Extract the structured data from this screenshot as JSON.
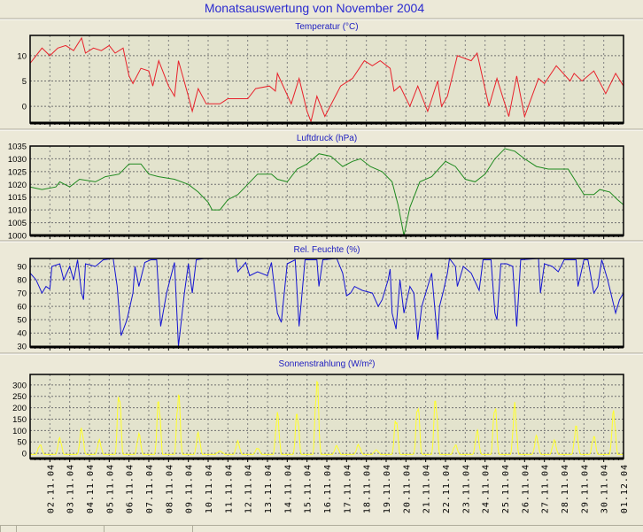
{
  "title": "Monatsauswertung von November 2004",
  "colors": {
    "background": "#ece9d8",
    "plot_bg": "#e3e3cd",
    "temperature": "#e8202a",
    "pressure": "#1f8a1f",
    "humidity": "#1414d2",
    "solar": "#ffff2a",
    "title": "#2a2ad0"
  },
  "chart_data": [
    {
      "type": "line",
      "title": "Temperatur (°C)",
      "ylim": [
        -3.3,
        14
      ],
      "yticks": [
        0,
        5,
        10
      ],
      "x_unit": "days since 01.11.04",
      "points": [
        [
          0,
          8.5
        ],
        [
          0.3,
          10
        ],
        [
          0.6,
          11.5
        ],
        [
          1,
          10
        ],
        [
          1.4,
          11.5
        ],
        [
          1.8,
          12
        ],
        [
          2.2,
          11
        ],
        [
          2.6,
          13.5
        ],
        [
          2.8,
          10.5
        ],
        [
          3.2,
          11.5
        ],
        [
          3.6,
          11
        ],
        [
          4,
          12
        ],
        [
          4.3,
          10.5
        ],
        [
          4.7,
          11.5
        ],
        [
          5,
          6
        ],
        [
          5.2,
          4.5
        ],
        [
          5.6,
          7.5
        ],
        [
          6,
          7
        ],
        [
          6.2,
          4
        ],
        [
          6.5,
          9
        ],
        [
          7,
          4
        ],
        [
          7.3,
          2
        ],
        [
          7.5,
          9
        ],
        [
          8,
          2
        ],
        [
          8.2,
          -1
        ],
        [
          8.5,
          3.5
        ],
        [
          8.9,
          0.5
        ],
        [
          9.6,
          0.5
        ],
        [
          10,
          1.5
        ],
        [
          11,
          1.5
        ],
        [
          11.4,
          3.5
        ],
        [
          12.1,
          4
        ],
        [
          12.4,
          3
        ],
        [
          12.5,
          6.5
        ],
        [
          13.2,
          0.5
        ],
        [
          13.6,
          5.5
        ],
        [
          14,
          -1
        ],
        [
          14.2,
          -3
        ],
        [
          14.5,
          2
        ],
        [
          14.9,
          -2
        ],
        [
          15.7,
          4
        ],
        [
          16.3,
          5.5
        ],
        [
          16.9,
          9
        ],
        [
          17.3,
          8
        ],
        [
          17.7,
          9
        ],
        [
          18.2,
          7.5
        ],
        [
          18.4,
          3
        ],
        [
          18.7,
          4
        ],
        [
          19.2,
          0
        ],
        [
          19.6,
          4
        ],
        [
          20.1,
          -1
        ],
        [
          20.6,
          5
        ],
        [
          20.8,
          0
        ],
        [
          21.1,
          2
        ],
        [
          21.6,
          10
        ],
        [
          22.3,
          9
        ],
        [
          22.6,
          10.5
        ],
        [
          23.2,
          0
        ],
        [
          23.6,
          5.5
        ],
        [
          24.2,
          -2
        ],
        [
          24.6,
          6
        ],
        [
          25,
          -2
        ],
        [
          25.7,
          5.5
        ],
        [
          26,
          4.5
        ],
        [
          26.6,
          8
        ],
        [
          27.3,
          5
        ],
        [
          27.5,
          6.5
        ],
        [
          27.9,
          5
        ],
        [
          28.5,
          7
        ],
        [
          29.1,
          2.5
        ],
        [
          29.6,
          6.5
        ],
        [
          30,
          4
        ]
      ]
    },
    {
      "type": "line",
      "title": "Luftdruck (hPa)",
      "ylim": [
        1000,
        1035
      ],
      "yticks": [
        1000,
        1005,
        1010,
        1015,
        1020,
        1025,
        1030,
        1035
      ],
      "x_unit": "days since 01.11.04",
      "points": [
        [
          0,
          1019
        ],
        [
          0.6,
          1018
        ],
        [
          1.3,
          1019
        ],
        [
          1.5,
          1021
        ],
        [
          2,
          1019
        ],
        [
          2.5,
          1022
        ],
        [
          3.3,
          1021
        ],
        [
          3.8,
          1023
        ],
        [
          4.5,
          1024
        ],
        [
          5,
          1028
        ],
        [
          5.6,
          1028
        ],
        [
          6,
          1024
        ],
        [
          6.5,
          1023
        ],
        [
          7.3,
          1022
        ],
        [
          8,
          1020
        ],
        [
          8.5,
          1017
        ],
        [
          9,
          1013
        ],
        [
          9.2,
          1010
        ],
        [
          9.6,
          1010
        ],
        [
          10,
          1014
        ],
        [
          10.5,
          1016
        ],
        [
          11,
          1020
        ],
        [
          11.5,
          1024
        ],
        [
          12.2,
          1024
        ],
        [
          12.5,
          1022
        ],
        [
          13,
          1021
        ],
        [
          13.5,
          1026
        ],
        [
          14,
          1028
        ],
        [
          14.6,
          1032
        ],
        [
          15.2,
          1031
        ],
        [
          15.8,
          1027
        ],
        [
          16.3,
          1029
        ],
        [
          16.7,
          1030
        ],
        [
          17.2,
          1027
        ],
        [
          17.8,
          1025
        ],
        [
          18.3,
          1021
        ],
        [
          18.6,
          1012
        ],
        [
          18.9,
          1000
        ],
        [
          19.2,
          1011
        ],
        [
          19.7,
          1021
        ],
        [
          20.3,
          1023
        ],
        [
          21,
          1029
        ],
        [
          21.5,
          1027
        ],
        [
          22,
          1022
        ],
        [
          22.5,
          1021
        ],
        [
          23,
          1024
        ],
        [
          23.5,
          1030
        ],
        [
          24,
          1034
        ],
        [
          24.5,
          1033
        ],
        [
          25,
          1030
        ],
        [
          25.6,
          1027
        ],
        [
          26.2,
          1026
        ],
        [
          26.8,
          1026
        ],
        [
          27.2,
          1026
        ],
        [
          27.6,
          1021
        ],
        [
          28,
          1016
        ],
        [
          28.5,
          1016
        ],
        [
          28.8,
          1018
        ],
        [
          29.3,
          1017
        ],
        [
          29.7,
          1014
        ],
        [
          30,
          1012
        ]
      ]
    },
    {
      "type": "line",
      "title": "Rel. Feuchte (%)",
      "ylim": [
        29.5,
        96
      ],
      "yticks": [
        30,
        40,
        50,
        60,
        70,
        80,
        90
      ],
      "x_unit": "days since 01.11.04",
      "points": [
        [
          0,
          85
        ],
        [
          0.3,
          80
        ],
        [
          0.6,
          70
        ],
        [
          0.8,
          75
        ],
        [
          1,
          73
        ],
        [
          1.1,
          90
        ],
        [
          1.5,
          92
        ],
        [
          1.7,
          80
        ],
        [
          2,
          90
        ],
        [
          2.2,
          80
        ],
        [
          2.4,
          95
        ],
        [
          2.6,
          70
        ],
        [
          2.7,
          65
        ],
        [
          2.8,
          92
        ],
        [
          3.3,
          90
        ],
        [
          3.7,
          95
        ],
        [
          4.2,
          96
        ],
        [
          4.4,
          75
        ],
        [
          4.6,
          38
        ],
        [
          4.9,
          50
        ],
        [
          5.2,
          70
        ],
        [
          5.3,
          90
        ],
        [
          5.5,
          75
        ],
        [
          5.8,
          93
        ],
        [
          6.1,
          95
        ],
        [
          6.4,
          95
        ],
        [
          6.6,
          45
        ],
        [
          6.9,
          70
        ],
        [
          7.3,
          93
        ],
        [
          7.5,
          30
        ],
        [
          7.8,
          70
        ],
        [
          8,
          92
        ],
        [
          8.2,
          70
        ],
        [
          8.4,
          95
        ],
        [
          8.8,
          96
        ],
        [
          10.4,
          96
        ],
        [
          10.5,
          86
        ],
        [
          10.9,
          93
        ],
        [
          11.1,
          83
        ],
        [
          11.5,
          86
        ],
        [
          12,
          83
        ],
        [
          12.2,
          93
        ],
        [
          12.5,
          55
        ],
        [
          12.7,
          48
        ],
        [
          13,
          92
        ],
        [
          13.4,
          95
        ],
        [
          13.6,
          45
        ],
        [
          13.9,
          95
        ],
        [
          14.5,
          95
        ],
        [
          14.6,
          75
        ],
        [
          14.8,
          95
        ],
        [
          15.5,
          96
        ],
        [
          15.8,
          85
        ],
        [
          16,
          68
        ],
        [
          16.2,
          70
        ],
        [
          16.4,
          75
        ],
        [
          16.8,
          72
        ],
        [
          17.3,
          70
        ],
        [
          17.6,
          60
        ],
        [
          17.8,
          65
        ],
        [
          18.1,
          80
        ],
        [
          18.2,
          88
        ],
        [
          18.3,
          55
        ],
        [
          18.5,
          43
        ],
        [
          18.7,
          80
        ],
        [
          18.9,
          55
        ],
        [
          19.2,
          75
        ],
        [
          19.4,
          70
        ],
        [
          19.6,
          35
        ],
        [
          19.8,
          60
        ],
        [
          20.1,
          75
        ],
        [
          20.3,
          85
        ],
        [
          20.6,
          35
        ],
        [
          20.7,
          60
        ],
        [
          20.9,
          72
        ],
        [
          21.1,
          85
        ],
        [
          21.2,
          96
        ],
        [
          21.5,
          90
        ],
        [
          21.6,
          75
        ],
        [
          21.9,
          90
        ],
        [
          22.3,
          85
        ],
        [
          22.7,
          72
        ],
        [
          22.9,
          95
        ],
        [
          23.3,
          95
        ],
        [
          23.5,
          55
        ],
        [
          23.6,
          50
        ],
        [
          23.8,
          92
        ],
        [
          24.1,
          92
        ],
        [
          24.4,
          90
        ],
        [
          24.6,
          45
        ],
        [
          24.8,
          95
        ],
        [
          25.7,
          96
        ],
        [
          25.8,
          70
        ],
        [
          26,
          92
        ],
        [
          26.4,
          90
        ],
        [
          26.7,
          86
        ],
        [
          27,
          95
        ],
        [
          27.6,
          95
        ],
        [
          27.7,
          75
        ],
        [
          28,
          95
        ],
        [
          28.2,
          95
        ],
        [
          28.5,
          70
        ],
        [
          28.7,
          75
        ],
        [
          28.9,
          95
        ],
        [
          29.2,
          80
        ],
        [
          29.6,
          55
        ],
        [
          29.8,
          65
        ],
        [
          30,
          70
        ]
      ]
    },
    {
      "type": "area",
      "title": "Sonnenstrahlung (W/m²)",
      "ylim": [
        -23,
        346
      ],
      "yticks": [
        0,
        50,
        100,
        150,
        200,
        250,
        300
      ],
      "x_unit": "days since 01.11.04",
      "daily_peaks": [
        [
          0.5,
          40
        ],
        [
          1.5,
          70
        ],
        [
          2.6,
          115
        ],
        [
          3.5,
          60
        ],
        [
          4.5,
          285
        ],
        [
          5.5,
          90
        ],
        [
          6.5,
          250
        ],
        [
          7.5,
          280
        ],
        [
          8.5,
          95
        ],
        [
          9.6,
          10
        ],
        [
          10.5,
          55
        ],
        [
          11.5,
          25
        ],
        [
          12.5,
          185
        ],
        [
          13.5,
          190
        ],
        [
          14.5,
          345
        ],
        [
          15.5,
          35
        ],
        [
          16.6,
          40
        ],
        [
          17.5,
          15
        ],
        [
          18.5,
          165
        ],
        [
          19.6,
          230
        ],
        [
          20.5,
          255
        ],
        [
          21.5,
          40
        ],
        [
          22.6,
          105
        ],
        [
          23.5,
          225
        ],
        [
          24.5,
          225
        ],
        [
          25.6,
          80
        ],
        [
          26.5,
          60
        ],
        [
          27.6,
          125
        ],
        [
          28.5,
          80
        ],
        [
          29.5,
          195
        ]
      ],
      "night_value": -5
    }
  ],
  "x_labels": [
    "02.11.04",
    "03.11.04",
    "04.11.04",
    "05.11.04",
    "06.11.04",
    "07.11.04",
    "08.11.04",
    "09.11.04",
    "10.11.04",
    "11.11.04",
    "12.11.04",
    "13.11.04",
    "14.11.04",
    "15.11.04",
    "16.11.04",
    "17.11.04",
    "18.11.04",
    "19.11.04",
    "20.11.04",
    "21.11.04",
    "22.11.04",
    "23.11.04",
    "24.11.04",
    "25.11.04",
    "26.11.04",
    "27.11.04",
    "28.11.04",
    "29.11.04",
    "30.11.04",
    "01.12.04"
  ]
}
